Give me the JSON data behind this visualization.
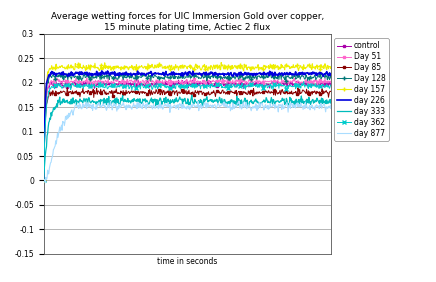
{
  "title": "Average wetting forces for UIC Immersion Gold over copper,\n15 minute plating time, Actiec 2 flux",
  "xlabel": "time in seconds",
  "xlim": [
    0,
    70
  ],
  "ylim": [
    -0.15,
    0.3
  ],
  "yticks": [
    -0.15,
    -0.1,
    -0.05,
    0.0,
    0.05,
    0.1,
    0.15,
    0.2,
    0.25,
    0.3
  ],
  "series": [
    {
      "label": "control",
      "color": "#aa00aa",
      "marker": "s",
      "markersize": 1.5,
      "lw": 0.7,
      "plateau": 0.197,
      "dip": -0.01,
      "rise_k": 3.5,
      "dip_t": 0.5,
      "noise": 0.003
    },
    {
      "label": "Day 51",
      "color": "#ff66cc",
      "marker": "s",
      "markersize": 1.5,
      "lw": 0.7,
      "plateau": 0.202,
      "dip": -0.02,
      "rise_k": 3.2,
      "dip_t": 0.6,
      "noise": 0.003
    },
    {
      "label": "Day 85",
      "color": "#880000",
      "marker": "s",
      "markersize": 1.5,
      "lw": 0.7,
      "plateau": 0.18,
      "dip": -0.015,
      "rise_k": 3.0,
      "dip_t": 0.5,
      "noise": 0.003
    },
    {
      "label": "Day 128",
      "color": "#007777",
      "marker": "+",
      "markersize": 2.5,
      "lw": 0.7,
      "plateau": 0.212,
      "dip": -0.01,
      "rise_k": 3.3,
      "dip_t": 0.5,
      "noise": 0.003
    },
    {
      "label": "day 157",
      "color": "#eeee00",
      "marker": "+",
      "markersize": 2.5,
      "lw": 0.8,
      "plateau": 0.232,
      "dip": -0.01,
      "rise_k": 3.0,
      "dip_t": 0.5,
      "noise": 0.003
    },
    {
      "label": "day 226",
      "color": "#0000dd",
      "marker": "None",
      "markersize": 2,
      "lw": 1.2,
      "plateau": 0.218,
      "dip": -0.02,
      "rise_k": 3.8,
      "dip_t": 0.4,
      "noise": 0.002
    },
    {
      "label": "day 333",
      "color": "#00bbbb",
      "marker": "None",
      "markersize": 2,
      "lw": 0.9,
      "plateau": 0.162,
      "dip": -0.04,
      "rise_k": 1.5,
      "dip_t": 1.2,
      "noise": 0.004
    },
    {
      "label": "day 362",
      "color": "#00cccc",
      "marker": "x",
      "markersize": 2.5,
      "lw": 0.7,
      "plateau": 0.193,
      "dip": -0.03,
      "rise_k": 2.8,
      "dip_t": 0.7,
      "noise": 0.003
    },
    {
      "label": "day 877",
      "color": "#aaddff",
      "marker": "None",
      "markersize": 2,
      "lw": 0.8,
      "plateau": 0.152,
      "dip": -0.105,
      "rise_k": 0.7,
      "dip_t": 2.5,
      "noise": 0.004
    }
  ],
  "background_color": "#ffffff",
  "grid_color": "#999999",
  "title_fontsize": 6.5,
  "tick_fontsize": 5.5,
  "legend_fontsize": 5.5
}
